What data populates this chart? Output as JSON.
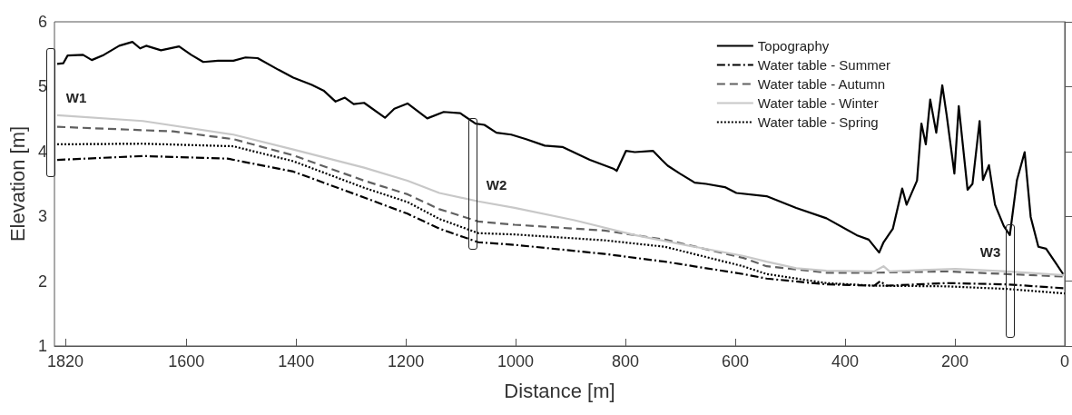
{
  "chart_data": {
    "type": "line",
    "xlabel": "Distance [m]",
    "ylabel": "Elevation [m]",
    "xlim": [
      1840,
      0
    ],
    "xticks": [
      1820,
      1600,
      1400,
      1200,
      1000,
      800,
      600,
      400,
      200,
      0
    ],
    "ylim": [
      1,
      6
    ],
    "yticks": [
      1,
      2,
      3,
      4,
      5,
      6
    ],
    "grid": false,
    "legend": "top right",
    "marker": "none",
    "annotations": [
      "W1",
      "W2",
      "W3"
    ],
    "series": [
      {
        "name": "Topography",
        "color": "#000000",
        "line_style": "solid",
        "x": [
          1835,
          1824,
          1816,
          1788,
          1772,
          1750,
          1722,
          1698,
          1684,
          1673,
          1646,
          1613,
          1591,
          1569,
          1542,
          1514,
          1492,
          1470,
          1432,
          1405,
          1372,
          1350,
          1328,
          1311,
          1295,
          1276,
          1238,
          1221,
          1197,
          1161,
          1131,
          1101,
          1073,
          1057,
          1035,
          1008,
          981,
          947,
          915,
          865,
          821,
          816,
          799,
          783,
          750,
          734,
          723,
          701,
          674,
          653,
          619,
          598,
          543,
          489,
          434,
          379,
          357,
          338,
          330,
          313,
          296,
          288,
          269,
          261,
          253,
          245,
          234,
          223,
          215,
          201,
          193,
          177,
          168,
          155,
          149,
          138,
          127,
          111,
          100,
          87,
          73,
          62,
          48,
          34,
          18,
          3
        ],
        "values": [
          5.35,
          5.36,
          5.48,
          5.49,
          5.41,
          5.49,
          5.63,
          5.69,
          5.59,
          5.63,
          5.56,
          5.62,
          5.49,
          5.38,
          5.4,
          5.4,
          5.45,
          5.44,
          5.26,
          5.14,
          5.03,
          4.94,
          4.77,
          4.83,
          4.73,
          4.75,
          4.52,
          4.66,
          4.74,
          4.51,
          4.61,
          4.59,
          4.43,
          4.41,
          4.29,
          4.26,
          4.19,
          4.09,
          4.07,
          3.87,
          3.73,
          3.7,
          4.01,
          3.99,
          4.01,
          3.87,
          3.78,
          3.66,
          3.52,
          3.5,
          3.45,
          3.36,
          3.31,
          3.13,
          2.97,
          2.71,
          2.64,
          2.44,
          2.6,
          2.81,
          3.43,
          3.18,
          3.55,
          4.43,
          4.11,
          4.8,
          4.29,
          5.02,
          4.56,
          3.66,
          4.7,
          3.41,
          3.5,
          4.47,
          3.56,
          3.79,
          3.18,
          2.85,
          2.71,
          3.56,
          3.99,
          2.99,
          2.53,
          2.5,
          2.3,
          2.11
        ]
      },
      {
        "name": "Water table - Summer",
        "color": "#000000",
        "line_style": "dashdot",
        "x": [
          1835,
          1679,
          1525,
          1405,
          1276,
          1197,
          1139,
          1068,
          1002,
          838,
          728,
          586,
          543,
          434,
          347,
          336,
          325,
          215,
          105,
          0
        ],
        "values": [
          3.87,
          3.93,
          3.89,
          3.69,
          3.29,
          3.04,
          2.81,
          2.6,
          2.56,
          2.42,
          2.3,
          2.11,
          2.04,
          1.95,
          1.93,
          2.0,
          1.93,
          1.97,
          1.95,
          1.89
        ]
      },
      {
        "name": "Water table - Autumn",
        "color": "#606060",
        "line_style": "dashed",
        "x": [
          1835,
          1624,
          1514,
          1405,
          1276,
          1197,
          1139,
          1068,
          1002,
          838,
          728,
          586,
          543,
          434,
          347,
          215,
          0
        ],
        "values": [
          4.38,
          4.31,
          4.19,
          3.94,
          3.55,
          3.34,
          3.11,
          2.92,
          2.87,
          2.78,
          2.64,
          2.36,
          2.23,
          2.13,
          2.13,
          2.15,
          2.07
        ]
      },
      {
        "name": "Water table - Winter",
        "color": "#c8c8c8",
        "line_style": "solid",
        "x": [
          1835,
          1679,
          1514,
          1405,
          1276,
          1197,
          1139,
          1068,
          1002,
          893,
          783,
          674,
          586,
          543,
          489,
          434,
          347,
          330,
          319,
          199,
          105,
          0
        ],
        "values": [
          4.56,
          4.47,
          4.26,
          4.03,
          3.75,
          3.55,
          3.36,
          3.23,
          3.13,
          2.94,
          2.71,
          2.53,
          2.39,
          2.3,
          2.2,
          2.16,
          2.15,
          2.23,
          2.15,
          2.19,
          2.15,
          2.09
        ]
      },
      {
        "name": "Water table - Spring",
        "color": "#000000",
        "line_style": "dotted",
        "x": [
          1835,
          1679,
          1514,
          1405,
          1276,
          1197,
          1139,
          1068,
          1002,
          838,
          728,
          586,
          543,
          434,
          347,
          215,
          105,
          0
        ],
        "values": [
          4.11,
          4.12,
          4.08,
          3.85,
          3.44,
          3.22,
          2.96,
          2.74,
          2.72,
          2.63,
          2.53,
          2.23,
          2.11,
          1.97,
          1.93,
          1.92,
          1.88,
          1.81
        ]
      }
    ]
  }
}
